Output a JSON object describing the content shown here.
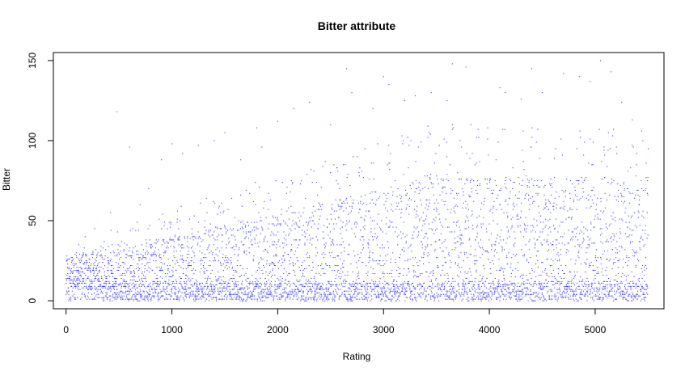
{
  "chart_data": {
    "type": "scatter",
    "title": "Bitter attribute",
    "xlabel": "Rating",
    "ylabel": "Bitter",
    "xlim": [
      -120,
      5650
    ],
    "ylim": [
      -5,
      155
    ],
    "x_ticks": [
      0,
      1000,
      2000,
      3000,
      4000,
      5000
    ],
    "y_ticks": [
      0,
      50,
      100,
      150
    ],
    "x_tick_labels": [
      "0",
      "1000",
      "2000",
      "3000",
      "4000",
      "5000"
    ],
    "y_tick_labels": [
      "0",
      "50",
      "100",
      "150"
    ],
    "grid": false,
    "legend": "none",
    "point_color": "#3b3bff",
    "point_count": 5500,
    "series": [
      {
        "x": [
          30,
          60,
          90,
          120,
          150,
          180,
          210,
          240,
          270,
          300,
          350,
          420,
          480,
          550,
          600,
          700,
          780,
          900,
          1000,
          1100,
          1250,
          1400,
          1500,
          1650,
          1800,
          1850,
          2000,
          2150,
          2300,
          2500,
          2650,
          2700,
          2900,
          3000,
          3050,
          3200,
          3300,
          3450,
          3600,
          3650,
          3780,
          3900,
          4100,
          4150,
          4300,
          4400,
          4500,
          4700,
          4850,
          4950,
          5050,
          5150,
          5250,
          5350,
          5450,
          5500
        ],
        "y": [
          15,
          25,
          8,
          35,
          18,
          40,
          22,
          12,
          45,
          30,
          20,
          55,
          118,
          36,
          96,
          60,
          70,
          88,
          98,
          92,
          97,
          100,
          105,
          88,
          108,
          96,
          112,
          120,
          124,
          110,
          145,
          130,
          120,
          140,
          135,
          125,
          128,
          130,
          125,
          148,
          146,
          102,
          133,
          130,
          126,
          145,
          130,
          142,
          140,
          137,
          150,
          143,
          124,
          113,
          100,
          95
        ]
      }
    ]
  }
}
